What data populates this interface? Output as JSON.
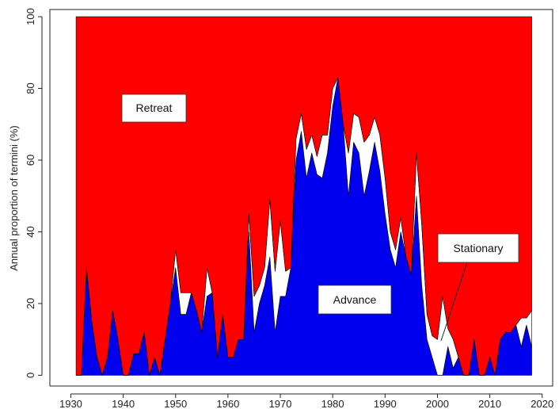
{
  "chart_data": {
    "type": "area",
    "ylabel": "Annual proportion of termini (%)",
    "xlabel": "",
    "title": "",
    "xlim": [
      1926,
      2022
    ],
    "ylim": [
      -3,
      102
    ],
    "x_ticks": [
      1930,
      1940,
      1950,
      1960,
      1970,
      1980,
      1990,
      2000,
      2010,
      2020
    ],
    "y_ticks": [
      0,
      20,
      40,
      60,
      80,
      100
    ],
    "stacked": true,
    "stack_order": [
      "Advance",
      "Stationary",
      "Retreat"
    ],
    "colors": {
      "Advance": "#0000ee",
      "Stationary": "#ffffff",
      "Retreat": "#ff0000"
    },
    "labels": {
      "retreat": "Retreat",
      "stationary": "Stationary",
      "advance": "Advance"
    },
    "x": [
      1931,
      1932,
      1933,
      1934,
      1935,
      1936,
      1937,
      1938,
      1939,
      1940,
      1941,
      1942,
      1943,
      1944,
      1945,
      1946,
      1947,
      1948,
      1949,
      1950,
      1951,
      1952,
      1953,
      1954,
      1955,
      1956,
      1957,
      1958,
      1959,
      1960,
      1961,
      1962,
      1963,
      1964,
      1965,
      1966,
      1967,
      1968,
      1969,
      1970,
      1971,
      1972,
      1973,
      1974,
      1975,
      1976,
      1977,
      1978,
      1979,
      1980,
      1981,
      1982,
      1983,
      1984,
      1985,
      1986,
      1987,
      1988,
      1989,
      1990,
      1991,
      1992,
      1993,
      1994,
      1995,
      1996,
      1997,
      1998,
      1999,
      2000,
      2001,
      2002,
      2003,
      2004,
      2005,
      2006,
      2007,
      2008,
      2009,
      2010,
      2011,
      2012,
      2013,
      2014,
      2015,
      2016,
      2017,
      2018
    ],
    "series": [
      {
        "name": "Advance",
        "values": [
          0,
          0,
          30,
          15,
          5,
          0,
          5,
          18,
          10,
          0,
          0,
          6,
          6,
          12,
          0,
          5,
          0,
          10,
          20,
          30,
          17,
          17,
          23,
          18,
          12,
          22,
          23,
          5,
          17,
          5,
          5,
          10,
          10,
          40,
          12,
          20,
          25,
          33,
          12,
          22,
          22,
          30,
          60,
          68,
          55,
          62,
          56,
          55,
          62,
          75,
          83,
          70,
          50,
          65,
          62,
          50,
          57,
          65,
          57,
          45,
          35,
          30,
          40,
          33,
          28,
          50,
          25,
          10,
          5,
          0,
          0,
          8,
          2,
          5,
          0,
          0,
          10,
          0,
          0,
          5,
          0,
          10,
          12,
          12,
          14,
          8,
          14,
          8
        ]
      },
      {
        "name": "Stationary",
        "values": [
          0,
          0,
          0,
          0,
          0,
          0,
          0,
          0,
          0,
          0,
          0,
          0,
          0,
          0,
          0,
          0,
          0,
          0,
          0,
          5,
          6,
          6,
          0,
          0,
          0,
          8,
          0,
          0,
          0,
          0,
          0,
          0,
          0,
          5,
          10,
          5,
          5,
          16,
          17,
          21,
          7,
          0,
          6,
          5,
          8,
          5,
          5,
          12,
          5,
          5,
          0,
          0,
          12,
          8,
          10,
          15,
          10,
          7,
          10,
          10,
          5,
          5,
          4,
          0,
          0,
          12,
          17,
          7,
          6,
          10,
          22,
          5,
          8,
          0,
          0,
          0,
          0,
          0,
          0,
          0,
          0,
          0,
          0,
          0,
          0,
          8,
          2,
          10
        ]
      },
      {
        "name": "Retreat",
        "values": [
          100,
          100,
          70,
          85,
          95,
          100,
          95,
          82,
          90,
          100,
          100,
          94,
          94,
          88,
          100,
          95,
          100,
          90,
          80,
          65,
          77,
          77,
          77,
          82,
          88,
          70,
          77,
          95,
          83,
          95,
          95,
          90,
          90,
          55,
          78,
          75,
          70,
          51,
          71,
          57,
          71,
          70,
          34,
          27,
          37,
          33,
          39,
          33,
          33,
          20,
          17,
          30,
          38,
          27,
          28,
          35,
          33,
          28,
          33,
          45,
          60,
          65,
          56,
          67,
          72,
          38,
          58,
          83,
          89,
          90,
          78,
          87,
          90,
          95,
          100,
          100,
          90,
          100,
          100,
          95,
          100,
          90,
          88,
          88,
          86,
          84,
          84,
          82
        ]
      }
    ]
  }
}
